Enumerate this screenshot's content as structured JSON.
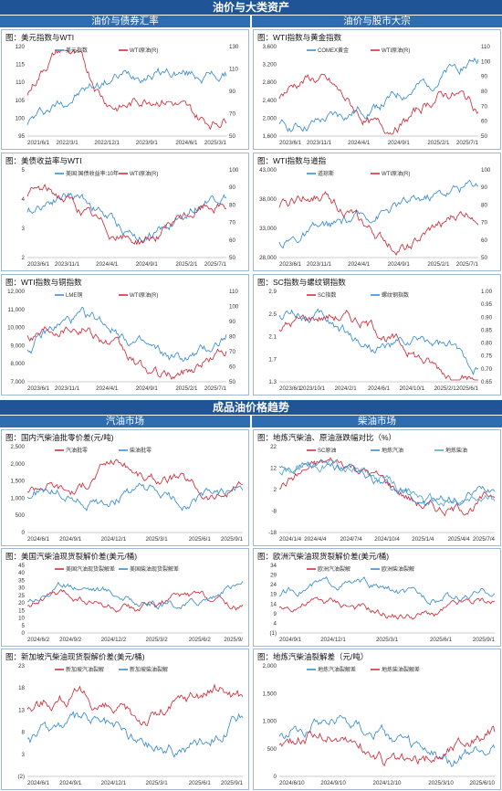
{
  "header": {
    "title": "油价与大类资产",
    "left_tab": "油价与债券汇率",
    "right_tab": "油价与股市大宗"
  },
  "header2": {
    "title": "成品油价格趋势",
    "left_tab": "汽油市场",
    "right_tab": "柴油市场"
  },
  "colors": {
    "band": "#1f5597",
    "blue": "#2e86d1",
    "red": "#d0202e",
    "teal": "#4aa3c9"
  },
  "charts": [
    {
      "id": "c1",
      "title": "图：美元指数与WTI",
      "legend": [
        "美元指数",
        "WTI原油(R)"
      ],
      "left_ticks": [
        "120",
        "115",
        "110",
        "105",
        "100",
        "95"
      ],
      "right_ticks": [
        "130",
        "110",
        "90",
        "70",
        "50"
      ],
      "x_ticks": [
        "2021/6/1",
        "2022/3/1",
        "2022/12/1",
        "2023/9/1",
        "2024/6/1",
        "2025/3/1"
      ]
    },
    {
      "id": "c2",
      "title": "图：WTI指数与黄金指数",
      "legend": [
        "COMEX黄金",
        "WTI原油(R)"
      ],
      "left_ticks": [
        "3,600",
        "3,200",
        "2,800",
        "2,400",
        "2,000",
        "1,600"
      ],
      "right_ticks": [
        "110",
        "100",
        "90",
        "80",
        "70",
        "60",
        "50"
      ],
      "x_ticks": [
        "2023/6/1",
        "2023/11/1",
        "2024/4/1",
        "2024/9/1",
        "2025/2/1",
        "2025/7/1"
      ]
    },
    {
      "id": "c3",
      "title": "图：美债收益率与WTI",
      "legend": [
        "美国:国债收益率:10年",
        "WTI原油(R)"
      ],
      "left_ticks": [
        "5",
        "4",
        "3",
        "2"
      ],
      "right_ticks": [
        "100",
        "90",
        "80",
        "70",
        "60",
        "50"
      ],
      "x_ticks": [
        "2023/6/1",
        "2023/11/1",
        "2024/4/1",
        "2024/9/1",
        "2025/2/1",
        "2025/7/1"
      ]
    },
    {
      "id": "c4",
      "title": "图：WTI指数与道指",
      "legend": [
        "道琼斯",
        "WTI原油(R)"
      ],
      "left_ticks": [
        "43,000",
        "38,000",
        "33,000",
        "28,000"
      ],
      "right_ticks": [
        "100",
        "90",
        "80",
        "70",
        "60",
        "50"
      ],
      "x_ticks": [
        "2023/6/1",
        "2023/11/1",
        "2024/4/1",
        "2024/9/1",
        "2025/2/1",
        "2025/7/1"
      ]
    },
    {
      "id": "c5",
      "title": "图：WTI指数与铜指数",
      "legend": [
        "LME铜",
        "WTI原油(R)"
      ],
      "left_ticks": [
        "12,000",
        "11,000",
        "10,000",
        "9,000",
        "8,000",
        "7,000"
      ],
      "right_ticks": [
        "110",
        "100",
        "90",
        "80",
        "70",
        "60",
        "50"
      ],
      "x_ticks": [
        "2023/6/1",
        "2023/11/1",
        "2024/4/1",
        "2024/9/1",
        "2025/2/1",
        "2025/7/1"
      ]
    },
    {
      "id": "c6",
      "title": "图：SC指数与螺纹钢指数",
      "legend": [
        "SC指数",
        "螺纹钢指数"
      ],
      "left_ticks": [
        "2.9",
        "2.5",
        "2.1",
        "1.7",
        "1.3"
      ],
      "right_ticks": [
        "1.00",
        "0.95",
        "0.90",
        "0.85",
        "0.80",
        "0.75",
        "0.70",
        "0.65"
      ],
      "x_ticks": [
        "2023/6/1",
        "2023/10/1",
        "2024/2/1",
        "2024/6/1",
        "2024/10/1",
        "2025/2/1",
        "2025/6/1"
      ]
    },
    {
      "id": "c7",
      "title": "图：国内汽柴油批零价差(元/吨)",
      "legend": [
        "汽油批零",
        "柴油批零"
      ],
      "left_ticks": [
        "2,500",
        "2,000",
        "1,500",
        "1,000",
        "500",
        "0"
      ],
      "right_ticks": [],
      "x_ticks": [
        "2024/6/1",
        "2024/9/1",
        "2024/12/1",
        "2025/3/1",
        "2025/6/1",
        "2025/9/1"
      ]
    },
    {
      "id": "c8",
      "title": "图：地炼汽柴油、原油涨跌幅对比（%）",
      "legend": [
        "SC原油",
        "地炼汽油",
        "地炼柴油"
      ],
      "left_ticks": [
        "22",
        "12",
        "2",
        "-8",
        "-18"
      ],
      "right_ticks": [],
      "x_ticks": [
        "2024/1/4",
        "2024/4/4",
        "2024/7/4",
        "2024/10/4",
        "2025/1/4",
        "2025/4/4",
        "2025/7/4"
      ]
    },
    {
      "id": "c9",
      "title": "图：美国汽柴油现货裂解价差(美元/桶)",
      "legend": [
        "美国汽油现货裂解差",
        "美国柴油现货裂解差"
      ],
      "left_ticks": [
        "45",
        "40",
        "35",
        "30",
        "25",
        "20",
        "15",
        "10",
        "5",
        "0"
      ],
      "right_ticks": [],
      "x_ticks": [
        "2024/6/2",
        "2024/9/2",
        "2024/12/2",
        "2025/3/2",
        "2025/6/2",
        "2025/9/"
      ]
    },
    {
      "id": "c10",
      "title": "图：欧洲汽柴油现货裂解价差(美元/桶)",
      "legend": [
        "欧洲汽油裂解",
        "欧洲柴油裂解"
      ],
      "left_ticks": [
        "34",
        "29",
        "24",
        "19",
        "14",
        "9",
        "4",
        "(1)"
      ],
      "right_ticks": [],
      "x_ticks": [
        "2024/9/1",
        "2024/12/1",
        "2025/3/1",
        "2025/6/1",
        "2025/9/1"
      ]
    },
    {
      "id": "c11",
      "title": "图：新加坡汽柴油现货裂解价差(美元/桶)",
      "legend": [
        "新加坡汽油裂解",
        "新加坡柴油裂解"
      ],
      "left_ticks": [
        "23",
        "18",
        "13",
        "8",
        "3",
        "(2)"
      ],
      "right_ticks": [],
      "x_ticks": [
        "2024/6/1",
        "2024/9/1",
        "2024/12/1",
        "2025/3/1",
        "2025/6/1",
        "2025/9/1"
      ]
    },
    {
      "id": "c12",
      "title": "图：地炼汽柴油裂解差（元/吨）",
      "legend": [
        "地炼汽油裂解差",
        "地炼柴油裂解差"
      ],
      "left_ticks": [
        "2,000",
        "1,500",
        "1,000",
        "500",
        "0"
      ],
      "right_ticks": [],
      "x_ticks": [
        "2024/6/10",
        "2024/9/10",
        "2024/12/10",
        "2025/3/10",
        "2025/6/10"
      ]
    }
  ]
}
